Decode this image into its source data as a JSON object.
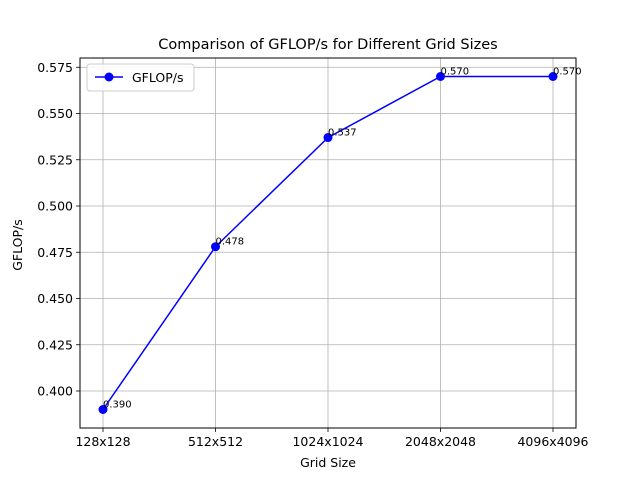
{
  "chart_data": {
    "type": "line",
    "title": "Comparison of GFLOP/s for Different Grid Sizes",
    "xlabel": "Grid Size",
    "ylabel": "GFLOP/s",
    "categories": [
      "128x128",
      "512x512",
      "1024x1024",
      "2048x2048",
      "4096x4096"
    ],
    "series": [
      {
        "name": "GFLOP/s",
        "values": [
          0.39,
          0.478,
          0.537,
          0.57,
          0.57
        ],
        "labels": [
          "0.390",
          "0.478",
          "0.537",
          "0.570",
          "0.570"
        ],
        "color": "#0000ff",
        "marker": "circle"
      }
    ],
    "ylim": [
      0.38,
      0.58
    ],
    "yticks": [
      0.4,
      0.425,
      0.45,
      0.475,
      0.5,
      0.525,
      0.55,
      0.575
    ],
    "ytick_labels": [
      "0.400",
      "0.425",
      "0.450",
      "0.475",
      "0.500",
      "0.525",
      "0.550",
      "0.575"
    ],
    "grid": true,
    "legend": "top-left"
  }
}
